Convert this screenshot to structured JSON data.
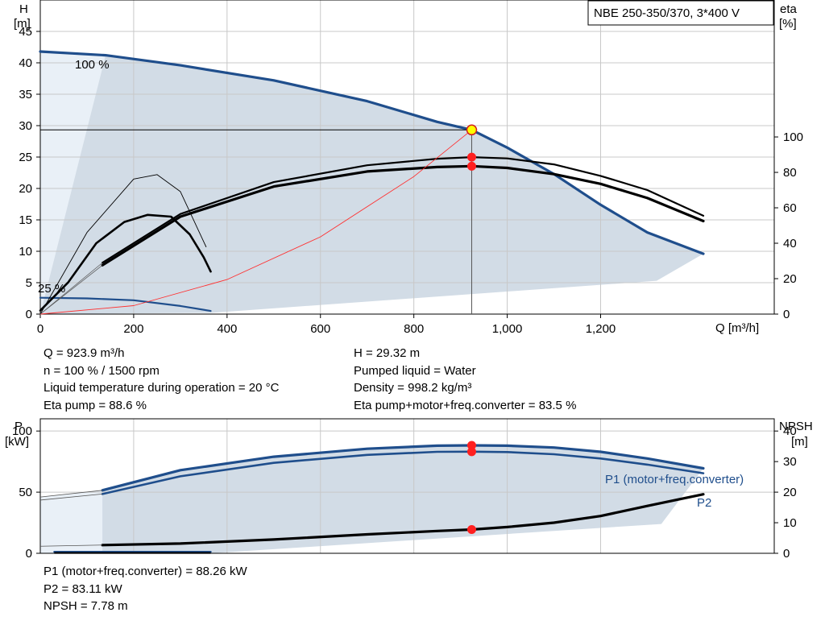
{
  "title_box": "NBE 250-350/370, 3*400 V",
  "chart_data": [
    {
      "type": "line",
      "panel": "head-efficiency",
      "left_axis": {
        "label": "H",
        "unit": "[m]",
        "range": [
          0,
          50
        ],
        "ticks": [
          0,
          5,
          10,
          15,
          20,
          25,
          30,
          35,
          40,
          45
        ]
      },
      "right_axis": {
        "label": "eta",
        "unit": "[%]",
        "range": [
          0,
          100
        ],
        "ticks": [
          0,
          20,
          40,
          60,
          80,
          100
        ]
      },
      "x_axis": {
        "label": "Q [m³/h]",
        "range": [
          0,
          1550
        ],
        "ticks": [
          0,
          200,
          400,
          600,
          800,
          1000,
          1200
        ],
        "tick_labels": [
          "0",
          "200",
          "400",
          "600",
          "800",
          "1,000",
          "1,200"
        ]
      },
      "grid": true,
      "curve_labels": [
        "100 %",
        "25 %"
      ],
      "series": [
        {
          "axis": "left",
          "color": "#1f4e8c",
          "x": [
            0,
            140,
            300,
            500,
            700,
            850,
            923.9,
            1000,
            1100,
            1200,
            1300,
            1420
          ],
          "y": [
            41.8,
            41.2,
            39.6,
            37.2,
            33.9,
            30.6,
            29.32,
            26.5,
            22.3,
            17.4,
            13.0,
            9.6
          ]
        },
        {
          "axis": "left",
          "color": "#1f4e8c",
          "x": [
            0,
            100,
            200,
            300,
            365
          ],
          "y": [
            2.6,
            2.5,
            2.2,
            1.3,
            0.5
          ]
        },
        {
          "axis": "right",
          "color": "#000000",
          "x": [
            133,
            300,
            500,
            700,
            850,
            923.9,
            1000,
            1100,
            1200,
            1300,
            1420
          ],
          "y": [
            29,
            56.5,
            74.5,
            84,
            87.7,
            88.6,
            87.9,
            84.5,
            78,
            70,
            55.5
          ]
        },
        {
          "axis": "right",
          "color": "#000000",
          "x": [
            133,
            300,
            500,
            700,
            850,
            923.9,
            1000,
            1100,
            1200,
            1300,
            1420
          ],
          "y": [
            27.6,
            55,
            72,
            80.5,
            83,
            83.5,
            82.5,
            79,
            73.5,
            65.5,
            52.5
          ]
        },
        {
          "axis": "right",
          "color": "#000000",
          "x": [
            0,
            60,
            120,
            180,
            230,
            280,
            320,
            350,
            365
          ],
          "y": [
            2,
            18,
            40,
            52,
            56,
            55,
            45,
            32,
            24
          ]
        },
        {
          "axis": "left",
          "color": "#000000",
          "x": [
            0,
            100,
            200,
            250,
            300,
            355
          ],
          "y": [
            0,
            13,
            21.5,
            22.2,
            19.5,
            10.7
          ]
        },
        {
          "axis": "left",
          "color": "#ff3030",
          "x": [
            0,
            200,
            400,
            600,
            800,
            923.9
          ],
          "y": [
            0,
            1.35,
            5.5,
            12.3,
            21.9,
            29.32
          ]
        }
      ],
      "duty_point": {
        "q": 923.9,
        "h": 29.32,
        "eta_pump": 88.6,
        "eta_total": 83.5
      }
    },
    {
      "type": "line",
      "panel": "power-npsh",
      "left_axis": {
        "label": "P",
        "unit": "[kW]",
        "range": [
          0,
          110
        ],
        "ticks": [
          0,
          50,
          100
        ]
      },
      "right_axis": {
        "label": "NPSH",
        "unit": "[m]",
        "range": [
          0,
          44
        ],
        "ticks": [
          0,
          10,
          20,
          30,
          40
        ]
      },
      "x_axis": {
        "range": [
          0,
          1550
        ],
        "ticks": [
          0,
          200,
          400,
          600,
          800,
          1000,
          1200
        ]
      },
      "grid": true,
      "series": [
        {
          "name": "P1 (motor+freq.converter)",
          "axis": "left",
          "color": "#1f4e8c",
          "x": [
            133,
            300,
            500,
            700,
            850,
            923.9,
            1000,
            1100,
            1200,
            1300,
            1420
          ],
          "y": [
            51.5,
            68,
            79,
            85.5,
            88,
            88.26,
            88,
            86.5,
            83,
            77.5,
            69.5
          ]
        },
        {
          "name": "P2",
          "axis": "left",
          "color": "#1f4e8c",
          "x": [
            133,
            300,
            500,
            700,
            850,
            923.9,
            1000,
            1100,
            1200,
            1300,
            1420
          ],
          "y": [
            48.5,
            63,
            74,
            80.5,
            83,
            83.11,
            82.8,
            81,
            77.5,
            72.5,
            65.5
          ]
        },
        {
          "axis": "right",
          "color": "#000000",
          "x": [
            133,
            300,
            500,
            700,
            850,
            923.9,
            1000,
            1100,
            1200,
            1300,
            1420
          ],
          "y": [
            2.7,
            3.2,
            4.5,
            6.2,
            7.3,
            7.78,
            8.6,
            10,
            12.2,
            15.5,
            19.3
          ]
        },
        {
          "axis": "left",
          "color": "#1f4e8c",
          "x": [
            30,
            365
          ],
          "y": [
            1.2,
            1.2
          ]
        }
      ],
      "markers_left": [
        88.26,
        83.11
      ],
      "marker_npsh": 7.78
    }
  ],
  "readout_top_left": [
    "Q = 923.9 m³/h",
    "n = 100 % / 1500 rpm",
    "Liquid temperature during operation = 20 °C",
    "Eta pump = 88.6 %"
  ],
  "readout_top_right": [
    "H = 29.32 m",
    "Pumped liquid = Water",
    "Density = 998.2 kg/m³",
    "Eta pump+motor+freq.converter = 83.5 %"
  ],
  "readout_bottom": [
    "P1 (motor+freq.converter) = 88.26 kW",
    "P2 = 83.11 kW",
    "NPSH = 7.78 m"
  ],
  "colors": {
    "operating_area": "#d2dce6",
    "low_area": "#e9f0f7",
    "curve_blue": "#1f4e8c",
    "duty_marker": "#ff2020",
    "system_curve": "#ff3030"
  }
}
